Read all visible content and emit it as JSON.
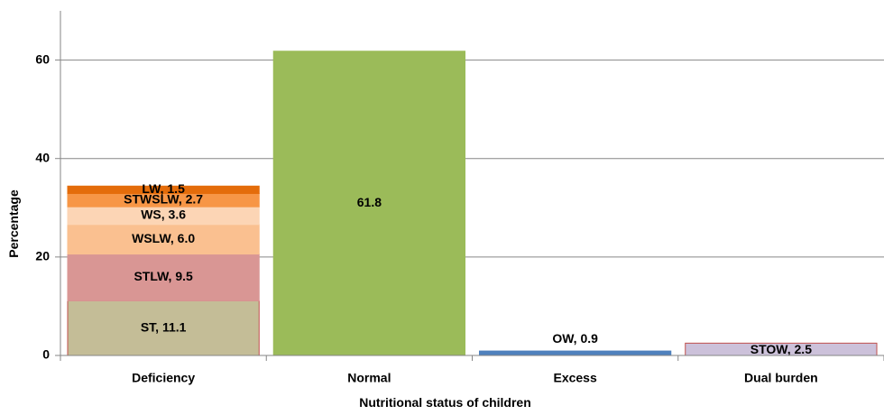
{
  "chart_data": {
    "type": "bar",
    "stacked": true,
    "xlabel": "Nutritional status of children",
    "ylabel": "Percentage",
    "ylim": [
      0,
      70
    ],
    "yticks": [
      0,
      20,
      40,
      60
    ],
    "grid": true,
    "categories": [
      "Deficiency",
      "Normal",
      "Excess",
      "Dual burden"
    ],
    "stacks": [
      {
        "category": "Deficiency",
        "segments": [
          {
            "label": "ST, 11.1",
            "value": 11.1,
            "color": "#c4bd97",
            "border": "#c0504d"
          },
          {
            "label": "STLW, 9.5",
            "value": 9.5,
            "color": "#d99694",
            "border": "#d99694"
          },
          {
            "label": "WSLW, 6.0",
            "value": 6.0,
            "color": "#fac090",
            "border": "#fac090"
          },
          {
            "label": "WS, 3.6",
            "value": 3.6,
            "color": "#fcd5b5",
            "border": "#fcd5b5"
          },
          {
            "label": "STWSLW, 2.7",
            "value": 2.7,
            "color": "#f79646",
            "border": "#f79646"
          },
          {
            "label": "LW, 1.5",
            "value": 1.5,
            "color": "#e46c0a",
            "border": "#e46c0a"
          }
        ]
      },
      {
        "category": "Normal",
        "segments": [
          {
            "label": "61.8",
            "value": 61.8,
            "color": "#9bbb59",
            "border": "#9bbb59"
          }
        ]
      },
      {
        "category": "Excess",
        "segments": [
          {
            "label": "OW, 0.9",
            "value": 0.9,
            "color": "#4f81bd",
            "border": "#4f81bd"
          }
        ]
      },
      {
        "category": "Dual burden",
        "segments": [
          {
            "label": "STOW, 2.5",
            "value": 2.5,
            "color": "#ccc1da",
            "border": "#c0504d"
          }
        ]
      }
    ]
  }
}
